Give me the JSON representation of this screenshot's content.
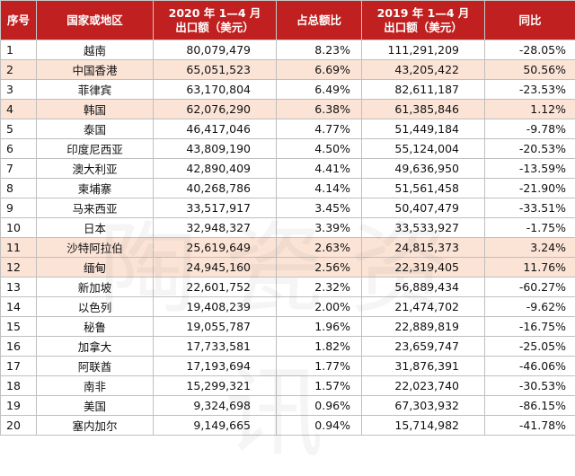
{
  "headers": {
    "index": "序号",
    "region": "国家或地区",
    "value_2020_line1": "2020 年 1—4 月",
    "value_2020_line2": "出口额（美元）",
    "share": "占总额比",
    "value_2019_line1": "2019 年 1—4 月",
    "value_2019_line2": "出口额（美元）",
    "yoy": "同比"
  },
  "rows": [
    {
      "index": "1",
      "region": "越南",
      "v2020": "80,079,479",
      "share": "8.23%",
      "v2019": "111,291,209",
      "yoy": "-28.05%",
      "highlight": false
    },
    {
      "index": "2",
      "region": "中国香港",
      "v2020": "65,051,523",
      "share": "6.69%",
      "v2019": "43,205,422",
      "yoy": "50.56%",
      "highlight": true
    },
    {
      "index": "3",
      "region": "菲律宾",
      "v2020": "63,170,804",
      "share": "6.49%",
      "v2019": "82,611,187",
      "yoy": "-23.53%",
      "highlight": false
    },
    {
      "index": "4",
      "region": "韩国",
      "v2020": "62,076,290",
      "share": "6.38%",
      "v2019": "61,385,846",
      "yoy": "1.12%",
      "highlight": true
    },
    {
      "index": "5",
      "region": "泰国",
      "v2020": "46,417,046",
      "share": "4.77%",
      "v2019": "51,449,184",
      "yoy": "-9.78%",
      "highlight": false
    },
    {
      "index": "6",
      "region": "印度尼西亚",
      "v2020": "43,809,190",
      "share": "4.50%",
      "v2019": "55,124,004",
      "yoy": "-20.53%",
      "highlight": false
    },
    {
      "index": "7",
      "region": "澳大利亚",
      "v2020": "42,890,409",
      "share": "4.41%",
      "v2019": "49,636,950",
      "yoy": "-13.59%",
      "highlight": false
    },
    {
      "index": "8",
      "region": "柬埔寨",
      "v2020": "40,268,786",
      "share": "4.14%",
      "v2019": "51,561,458",
      "yoy": "-21.90%",
      "highlight": false
    },
    {
      "index": "9",
      "region": "马来西亚",
      "v2020": "33,517,917",
      "share": "3.45%",
      "v2019": "50,407,479",
      "yoy": "-33.51%",
      "highlight": false
    },
    {
      "index": "10",
      "region": "日本",
      "v2020": "32,948,327",
      "share": "3.39%",
      "v2019": "33,533,927",
      "yoy": "-1.75%",
      "highlight": false
    },
    {
      "index": "11",
      "region": "沙特阿拉伯",
      "v2020": "25,619,649",
      "share": "2.63%",
      "v2019": "24,815,373",
      "yoy": "3.24%",
      "highlight": true
    },
    {
      "index": "12",
      "region": "缅甸",
      "v2020": "24,945,160",
      "share": "2.56%",
      "v2019": "22,319,405",
      "yoy": "11.76%",
      "highlight": true
    },
    {
      "index": "13",
      "region": "新加坡",
      "v2020": "22,601,752",
      "share": "2.32%",
      "v2019": "56,889,434",
      "yoy": "-60.27%",
      "highlight": false
    },
    {
      "index": "14",
      "region": "以色列",
      "v2020": "19,408,239",
      "share": "2.00%",
      "v2019": "21,474,702",
      "yoy": "-9.62%",
      "highlight": false
    },
    {
      "index": "15",
      "region": "秘鲁",
      "v2020": "19,055,787",
      "share": "1.96%",
      "v2019": "22,889,819",
      "yoy": "-16.75%",
      "highlight": false
    },
    {
      "index": "16",
      "region": "加拿大",
      "v2020": "17,733,581",
      "share": "1.82%",
      "v2019": "23,659,747",
      "yoy": "-25.05%",
      "highlight": false
    },
    {
      "index": "17",
      "region": "阿联酋",
      "v2020": "17,193,694",
      "share": "1.77%",
      "v2019": "31,876,391",
      "yoy": "-46.06%",
      "highlight": false
    },
    {
      "index": "18",
      "region": "南非",
      "v2020": "15,299,321",
      "share": "1.57%",
      "v2019": "22,023,740",
      "yoy": "-30.53%",
      "highlight": false
    },
    {
      "index": "19",
      "region": "美国",
      "v2020": "9,324,698",
      "share": "0.96%",
      "v2019": "67,303,932",
      "yoy": "-86.15%",
      "highlight": false
    },
    {
      "index": "20",
      "region": "塞内加尔",
      "v2020": "9,149,665",
      "share": "0.94%",
      "v2019": "15,714,982",
      "yoy": "-41.78%",
      "highlight": false
    }
  ],
  "watermark": "陶瓷资讯",
  "colors": {
    "header_bg": "#c0201f",
    "highlight_row": "#fbe3d6"
  }
}
